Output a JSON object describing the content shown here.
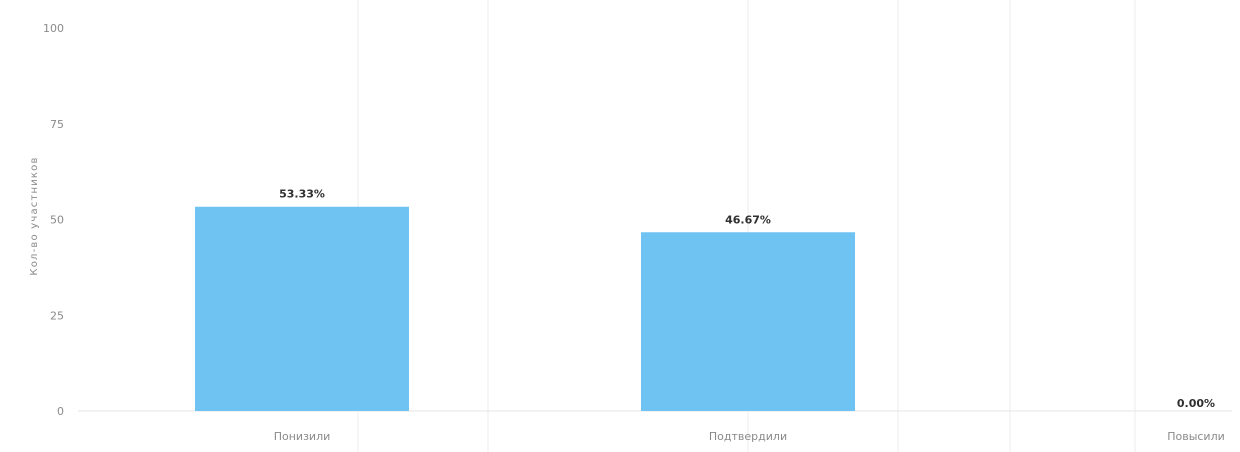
{
  "chart_data": {
    "type": "bar",
    "categories": [
      "Понизили",
      "Подтвердили",
      "Повысили"
    ],
    "values": [
      53.33,
      46.67,
      0
    ],
    "data_labels": [
      "53.33%",
      "46.67%",
      "0.00%"
    ],
    "ylabel": "Кол-во участников",
    "ylim": [
      0,
      100
    ],
    "yticks": [
      "0",
      "25",
      "50",
      "75",
      "100"
    ],
    "grid": true,
    "legend": "none",
    "bar_color": "#6ec3f3"
  }
}
